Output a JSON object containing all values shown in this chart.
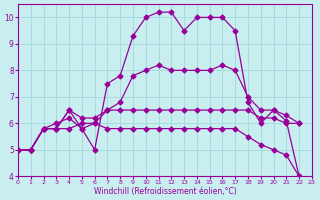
{
  "xlabel": "Windchill (Refroidissement éolien,°C)",
  "bg_color": "#c8eef0",
  "grid_color": "#a0d8dc",
  "line_color": "#990099",
  "xlim": [
    0,
    23
  ],
  "ylim": [
    4,
    10.5
  ],
  "xticks": [
    0,
    1,
    2,
    3,
    4,
    5,
    6,
    7,
    8,
    9,
    10,
    11,
    12,
    13,
    14,
    15,
    16,
    17,
    18,
    19,
    20,
    21,
    22,
    23
  ],
  "yticks": [
    4,
    5,
    6,
    7,
    8,
    9,
    10
  ],
  "series": [
    [
      5.0,
      5.0,
      5.8,
      5.8,
      6.5,
      5.8,
      5.0,
      7.5,
      7.8,
      9.3,
      10.0,
      10.2,
      10.2,
      9.5,
      10.0,
      10.0,
      10.0,
      9.5,
      6.8,
      6.0,
      6.5,
      6.1,
      4.0
    ],
    [
      5.0,
      5.0,
      5.8,
      5.8,
      6.5,
      6.2,
      6.2,
      6.5,
      6.8,
      7.8,
      8.0,
      8.2,
      8.0,
      8.0,
      8.0,
      8.0,
      8.2,
      8.0,
      7.0,
      6.5,
      6.5,
      6.3,
      6.0
    ],
    [
      5.0,
      5.0,
      5.8,
      6.0,
      6.2,
      5.8,
      6.0,
      6.5,
      6.5,
      6.5,
      6.5,
      6.5,
      6.5,
      6.5,
      6.5,
      6.5,
      6.5,
      6.5,
      6.5,
      6.2,
      6.2,
      6.0,
      6.0
    ],
    [
      5.0,
      5.0,
      5.8,
      5.8,
      5.8,
      6.0,
      6.0,
      5.8,
      5.8,
      5.8,
      5.8,
      5.8,
      5.8,
      5.8,
      5.8,
      5.8,
      5.8,
      5.8,
      5.5,
      5.2,
      5.0,
      4.8,
      4.0
    ]
  ]
}
